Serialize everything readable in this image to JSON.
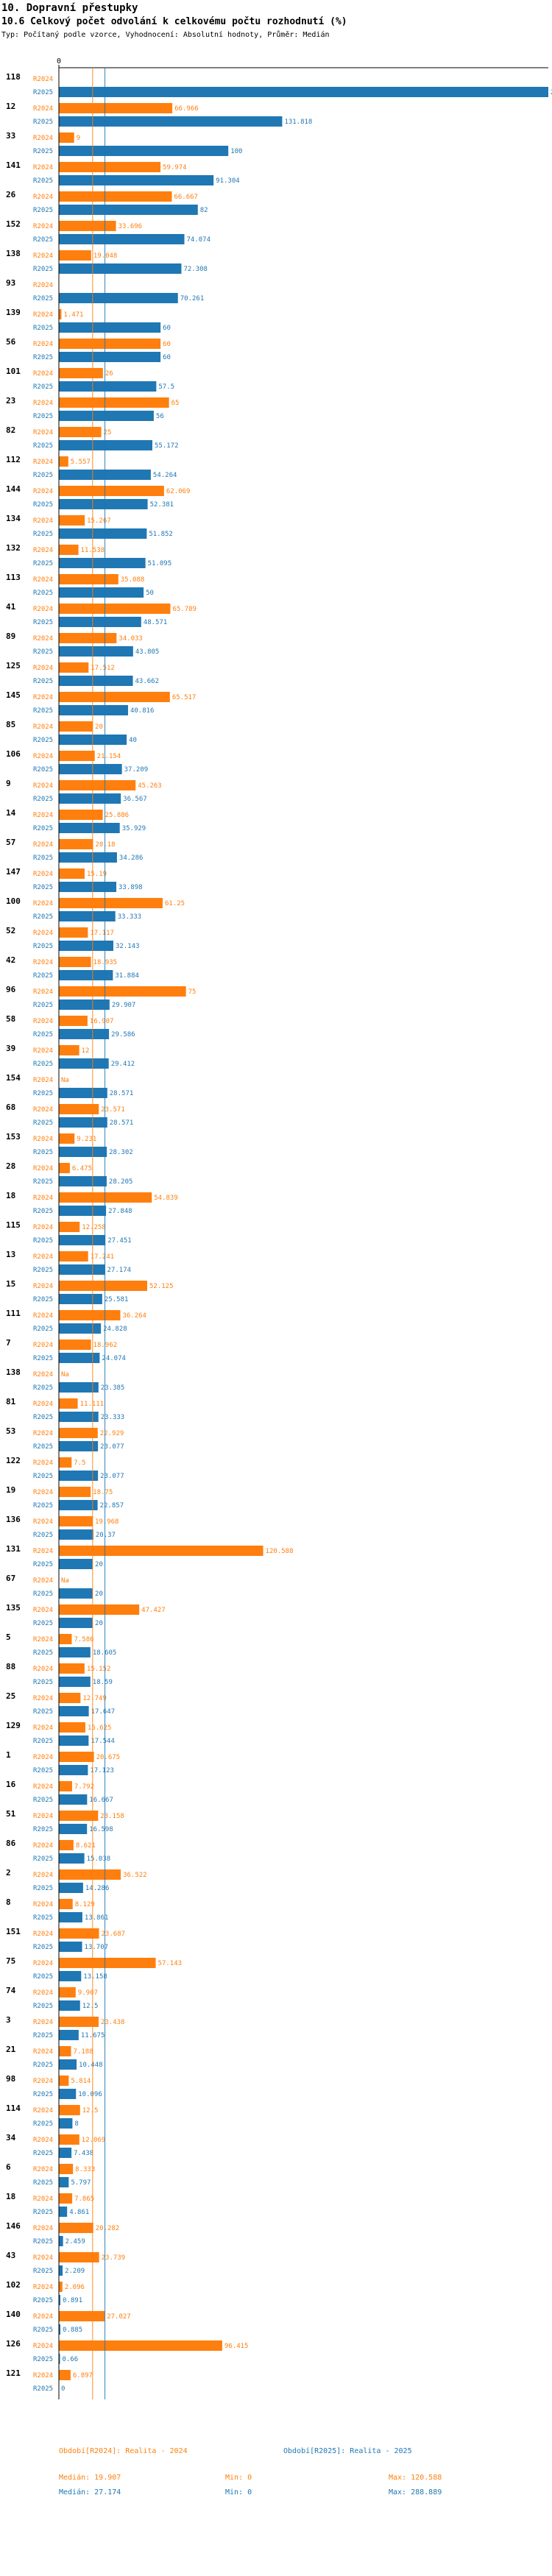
{
  "header": {
    "title": "10. Dopravní přestupky",
    "subtitle": "10.6 Celkový počet odvolání k celkovému počtu rozhodnutí (%)",
    "note": "Typ: Počítaný podle vzorce, Vyhodnocení: Absolutní hodnoty, Průměr: Medián"
  },
  "colors": {
    "r2024": "#ff7f0e",
    "r2025": "#1f77b4",
    "label2024": "#ff7f0e",
    "label2025": "#1f77b4"
  },
  "chart_data": {
    "type": "bar",
    "orientation": "horizontal",
    "axis_tick": "0",
    "xlim": [
      0,
      288.889
    ],
    "series_labels": [
      "R2024",
      "R2025"
    ],
    "categories": [
      "118",
      "12",
      "33",
      "141",
      "26",
      "152",
      "138",
      "93",
      "139",
      "56",
      "101",
      "23",
      "82",
      "112",
      "144",
      "134",
      "132",
      "113",
      "41",
      "89",
      "125",
      "145",
      "85",
      "106",
      "9",
      "14",
      "57",
      "147",
      "100",
      "52",
      "42",
      "96",
      "58",
      "39",
      "154",
      "68",
      "153",
      "28",
      "18",
      "115",
      "13",
      "15",
      "111",
      "7",
      "138",
      "81",
      "53",
      "122",
      "19",
      "136",
      "131",
      "67",
      "135",
      "5",
      "88",
      "25",
      "129",
      "1",
      "16",
      "51",
      "86",
      "2",
      "8",
      "151",
      "75",
      "74",
      "3",
      "21",
      "98",
      "114",
      "34",
      "6",
      "18",
      "146",
      "43",
      "102",
      "140",
      "126",
      "121"
    ],
    "series": [
      {
        "name": "R2024",
        "values": [
          null,
          66.966,
          9,
          59.974,
          66.667,
          33.696,
          19.048,
          null,
          1.471,
          60,
          26,
          65,
          25,
          5.557,
          62.069,
          15.267,
          11.538,
          35.088,
          65.789,
          34.033,
          17.512,
          65.517,
          20,
          21.154,
          45.263,
          25.886,
          20.18,
          15.19,
          61.25,
          17.117,
          18.935,
          75,
          16.907,
          12,
          null,
          23.571,
          9.231,
          6.475,
          54.839,
          12.258,
          17.241,
          52.125,
          36.264,
          18.962,
          null,
          11.111,
          22.929,
          7.5,
          18.75,
          19.968,
          120.588,
          null,
          47.427,
          7.586,
          15.152,
          12.749,
          15.625,
          20.675,
          7.792,
          23.158,
          8.621,
          36.522,
          8.129,
          23.687,
          57.143,
          9.907,
          23.438,
          7.188,
          5.814,
          12.5,
          12.069,
          8.333,
          7.865,
          20.282,
          23.739,
          2.096,
          27.027,
          96.415,
          6.897
        ]
      },
      {
        "name": "R2025",
        "values": [
          288.889,
          131.818,
          100,
          91.304,
          82,
          74.074,
          72.308,
          70.261,
          60,
          60,
          57.5,
          56,
          55.172,
          54.264,
          52.381,
          51.852,
          51.095,
          50,
          48.571,
          43.805,
          43.662,
          40.816,
          40,
          37.209,
          36.567,
          35.929,
          34.286,
          33.898,
          33.333,
          32.143,
          31.884,
          29.907,
          29.586,
          29.412,
          28.571,
          28.571,
          28.302,
          28.205,
          27.848,
          27.451,
          27.174,
          25.581,
          24.828,
          24.074,
          23.385,
          23.333,
          23.077,
          23.077,
          22.857,
          20.37,
          20,
          20,
          20,
          18.605,
          18.59,
          17.647,
          17.544,
          17.123,
          16.667,
          16.598,
          15.038,
          14.286,
          13.861,
          13.707,
          13.158,
          12.5,
          11.675,
          10.448,
          10.096,
          8,
          7.438,
          5.797,
          4.861,
          2.459,
          2.209,
          0.891,
          0.885,
          0.66,
          0
        ]
      }
    ],
    "value_labels_2024": [
      "",
      "66.966",
      "9",
      "59.974",
      "66.667",
      "33.696",
      "19.048",
      "",
      "1.471",
      "60",
      "26",
      "65",
      "25",
      "5.557",
      "62.069",
      "15.267",
      "11.538",
      "35.088",
      "65.789",
      "34.033",
      "17.512",
      "65.517",
      "20",
      "21.154",
      "45.263",
      "25.886",
      "20.18",
      "15.19",
      "61.25",
      "17.117",
      "18.935",
      "75",
      "16.907",
      "12",
      "Na",
      "23.571",
      "9.231",
      "6.475",
      "54.839",
      "12.258",
      "17.241",
      "52.125",
      "36.264",
      "18.962",
      "Na",
      "11.111",
      "22.929",
      "7.5",
      "18.75",
      "19.968",
      "120.588",
      "Na",
      "47.427",
      "7.586",
      "15.152",
      "12.749",
      "15.625",
      "20.675",
      "7.792",
      "23.158",
      "8.621",
      "36.522",
      "8.129",
      "23.687",
      "57.143",
      "9.907",
      "23.438",
      "7.188",
      "5.814",
      "12.5",
      "12.069",
      "8.333",
      "7.865",
      "20.282",
      "23.739",
      "2.096",
      "27.027",
      "96.415",
      "6.897"
    ],
    "value_labels_2025": [
      "288.889",
      "131.818",
      "100",
      "91.304",
      "82",
      "74.074",
      "72.308",
      "70.261",
      "60",
      "60",
      "57.5",
      "56",
      "55.172",
      "54.264",
      "52.381",
      "51.852",
      "51.095",
      "50",
      "48.571",
      "43.805",
      "43.662",
      "40.816",
      "40",
      "37.209",
      "36.567",
      "35.929",
      "34.286",
      "33.898",
      "33.333",
      "32.143",
      "31.884",
      "29.907",
      "29.586",
      "29.412",
      "28.571",
      "28.571",
      "28.302",
      "28.205",
      "27.848",
      "27.451",
      "27.174",
      "25.581",
      "24.828",
      "24.074",
      "23.385",
      "23.333",
      "23.077",
      "23.077",
      "22.857",
      "20.37",
      "20",
      "20",
      "20",
      "18.605",
      "18.59",
      "17.647",
      "17.544",
      "17.123",
      "16.667",
      "16.598",
      "15.038",
      "14.286",
      "13.861",
      "13.707",
      "13.158",
      "12.5",
      "11.675",
      "10.448",
      "10.096",
      "8",
      "7.438",
      "5.797",
      "4.861",
      "2.459",
      "2.209",
      "0.891",
      "0.885",
      "0.66",
      "0"
    ],
    "reference_lines": {
      "median_2024": 19.907,
      "median_2025": 27.174
    }
  },
  "legend": {
    "r2024": {
      "title": "Období[R2024]: Realita - 2024",
      "median": "Medián: 19.907",
      "min": "Min: 0",
      "max": "Max: 120.588"
    },
    "r2025": {
      "title": "Období[R2025]: Realita - 2025",
      "median": "Medián: 27.174",
      "min": "Min: 0",
      "max": "Max: 288.889"
    }
  }
}
